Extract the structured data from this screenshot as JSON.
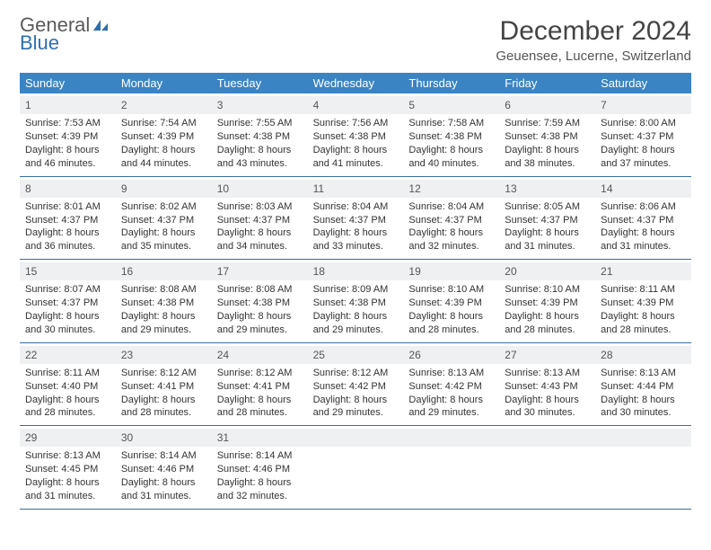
{
  "brand": {
    "line1": "General",
    "line2": "Blue"
  },
  "title": "December 2024",
  "location": "Geuensee, Lucerne, Switzerland",
  "colors": {
    "header_bg": "#3b84c4",
    "header_text": "#ffffff",
    "daynum_bg": "#eef0f2",
    "week_border": "#3b6ea0",
    "brand_blue": "#2f6fb0",
    "brand_grey": "#5a5a5a"
  },
  "weekdays": [
    "Sunday",
    "Monday",
    "Tuesday",
    "Wednesday",
    "Thursday",
    "Friday",
    "Saturday"
  ],
  "weeks": [
    [
      {
        "n": "1",
        "sr": "7:53 AM",
        "ss": "4:39 PM",
        "dl": "8 hours and 46 minutes."
      },
      {
        "n": "2",
        "sr": "7:54 AM",
        "ss": "4:39 PM",
        "dl": "8 hours and 44 minutes."
      },
      {
        "n": "3",
        "sr": "7:55 AM",
        "ss": "4:38 PM",
        "dl": "8 hours and 43 minutes."
      },
      {
        "n": "4",
        "sr": "7:56 AM",
        "ss": "4:38 PM",
        "dl": "8 hours and 41 minutes."
      },
      {
        "n": "5",
        "sr": "7:58 AM",
        "ss": "4:38 PM",
        "dl": "8 hours and 40 minutes."
      },
      {
        "n": "6",
        "sr": "7:59 AM",
        "ss": "4:38 PM",
        "dl": "8 hours and 38 minutes."
      },
      {
        "n": "7",
        "sr": "8:00 AM",
        "ss": "4:37 PM",
        "dl": "8 hours and 37 minutes."
      }
    ],
    [
      {
        "n": "8",
        "sr": "8:01 AM",
        "ss": "4:37 PM",
        "dl": "8 hours and 36 minutes."
      },
      {
        "n": "9",
        "sr": "8:02 AM",
        "ss": "4:37 PM",
        "dl": "8 hours and 35 minutes."
      },
      {
        "n": "10",
        "sr": "8:03 AM",
        "ss": "4:37 PM",
        "dl": "8 hours and 34 minutes."
      },
      {
        "n": "11",
        "sr": "8:04 AM",
        "ss": "4:37 PM",
        "dl": "8 hours and 33 minutes."
      },
      {
        "n": "12",
        "sr": "8:04 AM",
        "ss": "4:37 PM",
        "dl": "8 hours and 32 minutes."
      },
      {
        "n": "13",
        "sr": "8:05 AM",
        "ss": "4:37 PM",
        "dl": "8 hours and 31 minutes."
      },
      {
        "n": "14",
        "sr": "8:06 AM",
        "ss": "4:37 PM",
        "dl": "8 hours and 31 minutes."
      }
    ],
    [
      {
        "n": "15",
        "sr": "8:07 AM",
        "ss": "4:37 PM",
        "dl": "8 hours and 30 minutes."
      },
      {
        "n": "16",
        "sr": "8:08 AM",
        "ss": "4:38 PM",
        "dl": "8 hours and 29 minutes."
      },
      {
        "n": "17",
        "sr": "8:08 AM",
        "ss": "4:38 PM",
        "dl": "8 hours and 29 minutes."
      },
      {
        "n": "18",
        "sr": "8:09 AM",
        "ss": "4:38 PM",
        "dl": "8 hours and 29 minutes."
      },
      {
        "n": "19",
        "sr": "8:10 AM",
        "ss": "4:39 PM",
        "dl": "8 hours and 28 minutes."
      },
      {
        "n": "20",
        "sr": "8:10 AM",
        "ss": "4:39 PM",
        "dl": "8 hours and 28 minutes."
      },
      {
        "n": "21",
        "sr": "8:11 AM",
        "ss": "4:39 PM",
        "dl": "8 hours and 28 minutes."
      }
    ],
    [
      {
        "n": "22",
        "sr": "8:11 AM",
        "ss": "4:40 PM",
        "dl": "8 hours and 28 minutes."
      },
      {
        "n": "23",
        "sr": "8:12 AM",
        "ss": "4:41 PM",
        "dl": "8 hours and 28 minutes."
      },
      {
        "n": "24",
        "sr": "8:12 AM",
        "ss": "4:41 PM",
        "dl": "8 hours and 28 minutes."
      },
      {
        "n": "25",
        "sr": "8:12 AM",
        "ss": "4:42 PM",
        "dl": "8 hours and 29 minutes."
      },
      {
        "n": "26",
        "sr": "8:13 AM",
        "ss": "4:42 PM",
        "dl": "8 hours and 29 minutes."
      },
      {
        "n": "27",
        "sr": "8:13 AM",
        "ss": "4:43 PM",
        "dl": "8 hours and 30 minutes."
      },
      {
        "n": "28",
        "sr": "8:13 AM",
        "ss": "4:44 PM",
        "dl": "8 hours and 30 minutes."
      }
    ],
    [
      {
        "n": "29",
        "sr": "8:13 AM",
        "ss": "4:45 PM",
        "dl": "8 hours and 31 minutes."
      },
      {
        "n": "30",
        "sr": "8:14 AM",
        "ss": "4:46 PM",
        "dl": "8 hours and 31 minutes."
      },
      {
        "n": "31",
        "sr": "8:14 AM",
        "ss": "4:46 PM",
        "dl": "8 hours and 32 minutes."
      },
      null,
      null,
      null,
      null
    ]
  ],
  "labels": {
    "sunrise": "Sunrise:",
    "sunset": "Sunset:",
    "daylight": "Daylight:"
  }
}
